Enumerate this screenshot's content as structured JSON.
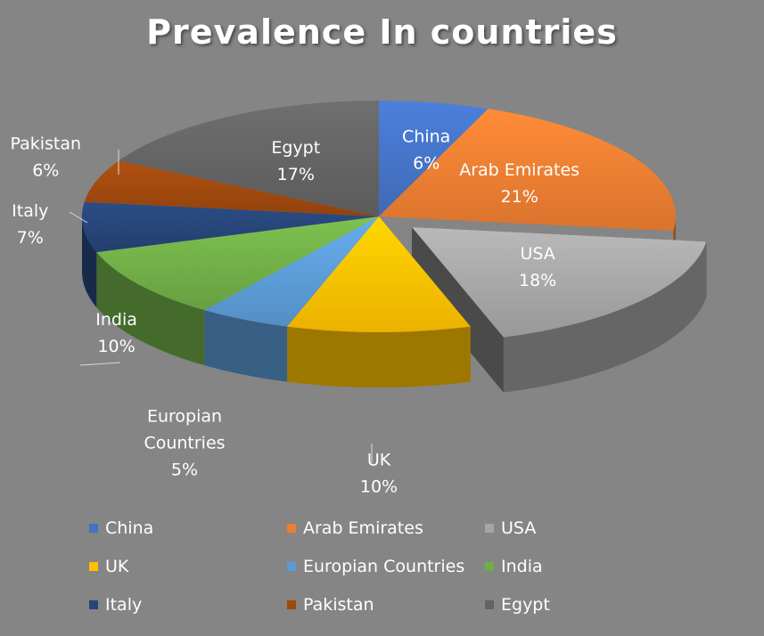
{
  "chart_data": {
    "type": "pie",
    "title": "Prevalence In countries",
    "slices": [
      {
        "name": "China",
        "value": 6,
        "label": "6%",
        "color": "#4472C4",
        "exploded": false
      },
      {
        "name": "Arab Emirates",
        "value": 21,
        "label": "21%",
        "color": "#ED7D31",
        "exploded": false
      },
      {
        "name": "USA",
        "value": 18,
        "label": "18%",
        "color": "#A5A5A5",
        "exploded": true
      },
      {
        "name": "UK",
        "value": 10,
        "label": "10%",
        "color": "#FFC000",
        "exploded": false
      },
      {
        "name": "Europian Countries",
        "value": 5,
        "label": "5%",
        "color": "#5B9BD5",
        "exploded": false
      },
      {
        "name": "India",
        "value": 10,
        "label": "10%",
        "color": "#70AD47",
        "exploded": false
      },
      {
        "name": "Italy",
        "value": 7,
        "label": "7%",
        "color": "#264478",
        "exploded": false
      },
      {
        "name": "Pakistan",
        "value": 6,
        "label": "6%",
        "color": "#9E480E",
        "exploded": false
      },
      {
        "name": "Egypt",
        "value": 17,
        "label": "17%",
        "color": "#636363",
        "exploded": false
      }
    ],
    "legend_position": "bottom",
    "style": "3d-pie"
  }
}
